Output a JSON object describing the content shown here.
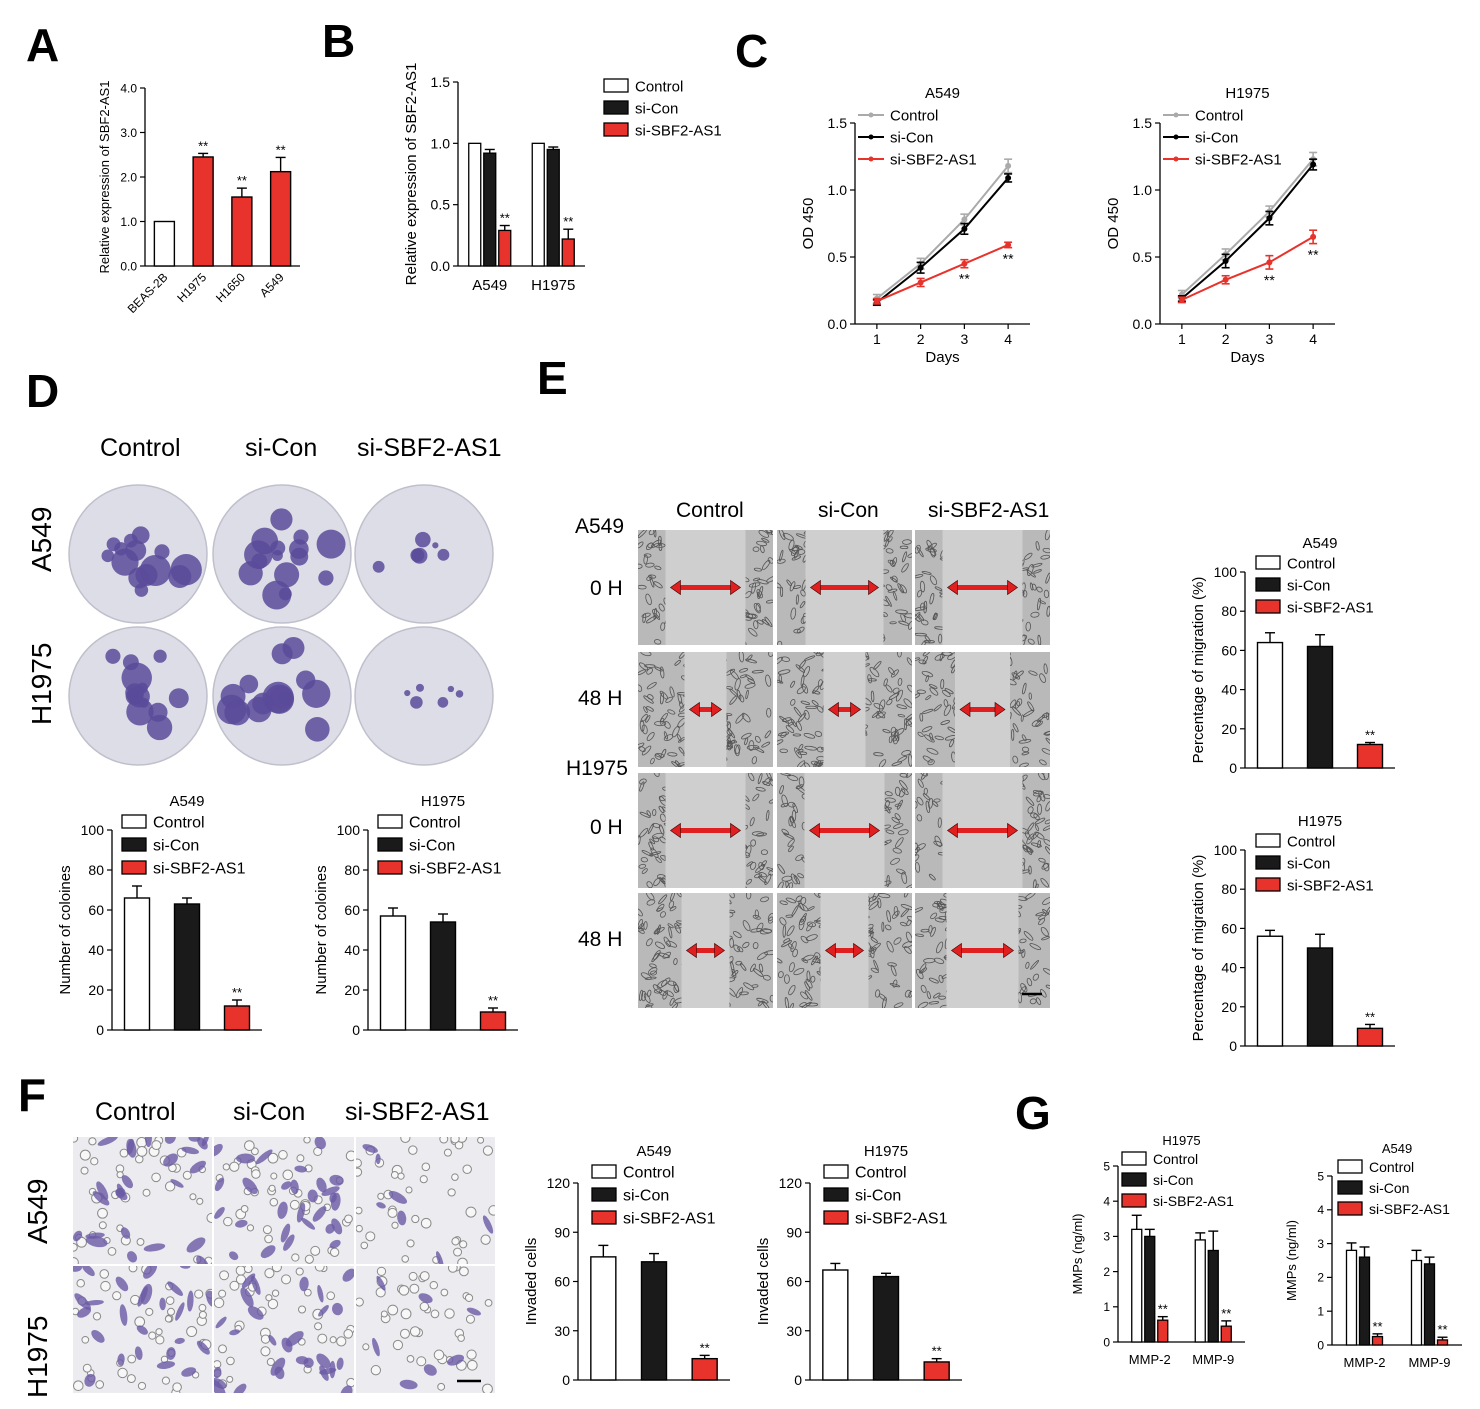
{
  "panel_labels": [
    "A",
    "B",
    "C",
    "D",
    "E",
    "F",
    "G"
  ],
  "colors": {
    "control": "#ffffff",
    "si_con": "#1a1a1a",
    "si_sbf2": "#e8322c",
    "line_control": "#aaaaaa",
    "axis": "#000000",
    "stain": "#5b4b9a",
    "arrow": "#e02020"
  },
  "sig": "**",
  "legend": [
    "Control",
    "si-Con",
    "si-SBF2-AS1"
  ],
  "photos": {
    "colony": {
      "cols": [
        "Control",
        "si-Con",
        "si-SBF2-AS1"
      ],
      "rows": [
        "A549",
        "H1975"
      ]
    },
    "wound": {
      "cols": [
        "Control",
        "si-Con",
        "si-SBF2-AS1"
      ],
      "groups": [
        "A549",
        "H1975"
      ],
      "times": [
        "0 H",
        "48 H",
        "0 H",
        "48 H"
      ]
    },
    "invasion": {
      "cols": [
        "Control",
        "si-Con",
        "si-SBF2-AS1"
      ],
      "rows": [
        "A549",
        "H1975"
      ]
    }
  },
  "chart_data": [
    {
      "id": "A",
      "type": "bar",
      "title": "",
      "ylabel": "Relative expression of SBF2-AS1",
      "xlabel": "",
      "categories": [
        "BEAS-2B",
        "H1975",
        "H1650",
        "A549"
      ],
      "values": [
        1.0,
        2.45,
        1.55,
        2.12
      ],
      "errors": [
        0,
        0.08,
        0.2,
        0.32
      ],
      "fills": [
        "control",
        "si_sbf2",
        "si_sbf2",
        "si_sbf2"
      ],
      "sig": [
        false,
        true,
        true,
        true
      ],
      "ylim": [
        0,
        4
      ],
      "yticks": [
        "0.0",
        "1.0",
        "2.0",
        "3.0",
        "4.0"
      ],
      "rotate_labels": true
    },
    {
      "id": "B",
      "type": "bar",
      "title": "",
      "ylabel": "Relative expression of SBF2-AS1",
      "xlabel": "",
      "categories": [
        "A549",
        "H1975"
      ],
      "series": [
        {
          "name": "Control",
          "values": [
            1.0,
            1.0
          ],
          "errors": [
            0,
            0
          ]
        },
        {
          "name": "si-Con",
          "values": [
            0.92,
            0.95
          ],
          "errors": [
            0.03,
            0.02
          ]
        },
        {
          "name": "si-SBF2-AS1",
          "values": [
            0.29,
            0.22
          ],
          "errors": [
            0.04,
            0.08
          ]
        }
      ],
      "sig": [
        false,
        false,
        true
      ],
      "ylim": [
        0,
        1.5
      ],
      "yticks": [
        "0.0",
        "0.5",
        "1.0",
        "1.5"
      ],
      "legend_position": "right"
    },
    {
      "id": "C1",
      "type": "line",
      "title": "A549",
      "ylabel": "OD 450",
      "xlabel": "Days",
      "x": [
        1,
        2,
        3,
        4
      ],
      "xticks": [
        "1",
        "2",
        "3",
        "4"
      ],
      "series": [
        {
          "name": "Control",
          "values": [
            0.19,
            0.45,
            0.78,
            1.18
          ],
          "errors": [
            0.03,
            0.04,
            0.04,
            0.05
          ]
        },
        {
          "name": "si-Con",
          "values": [
            0.16,
            0.42,
            0.71,
            1.09
          ],
          "errors": [
            0.02,
            0.04,
            0.04,
            0.03
          ]
        },
        {
          "name": "si-SBF2-AS1",
          "values": [
            0.17,
            0.31,
            0.45,
            0.59
          ],
          "errors": [
            0.02,
            0.03,
            0.03,
            0.02
          ]
        }
      ],
      "sig_points": [
        3,
        4
      ],
      "ylim": [
        0,
        1.5
      ],
      "yticks": [
        "0.0",
        "0.5",
        "1.0",
        "1.5"
      ],
      "legend_position": "top-left"
    },
    {
      "id": "C2",
      "type": "line",
      "title": "H1975",
      "ylabel": "OD 450",
      "xlabel": "Days",
      "x": [
        1,
        2,
        3,
        4
      ],
      "xticks": [
        "1",
        "2",
        "3",
        "4"
      ],
      "series": [
        {
          "name": "Control",
          "values": [
            0.22,
            0.52,
            0.84,
            1.23
          ],
          "errors": [
            0.03,
            0.04,
            0.04,
            0.05
          ]
        },
        {
          "name": "si-Con",
          "values": [
            0.19,
            0.47,
            0.79,
            1.19
          ],
          "errors": [
            0.02,
            0.05,
            0.05,
            0.04
          ]
        },
        {
          "name": "si-SBF2-AS1",
          "values": [
            0.18,
            0.33,
            0.46,
            0.65
          ],
          "errors": [
            0.02,
            0.03,
            0.05,
            0.05
          ]
        }
      ],
      "sig_points": [
        3,
        4
      ],
      "ylim": [
        0,
        1.5
      ],
      "yticks": [
        "0.0",
        "0.5",
        "1.0",
        "1.5"
      ],
      "legend_position": "top-left"
    },
    {
      "id": "D1",
      "type": "bar",
      "title": "A549",
      "ylabel": "Number of coloines",
      "xlabel": "",
      "categories": [
        "Control",
        "si-Con",
        "si-SBF2-AS1"
      ],
      "values": [
        66,
        63,
        12
      ],
      "errors": [
        6,
        3,
        3
      ],
      "sig": [
        false,
        false,
        true
      ],
      "ylim": [
        0,
        100
      ],
      "yticks": [
        "0",
        "20",
        "40",
        "60",
        "80",
        "100"
      ],
      "legend_position": "top-right"
    },
    {
      "id": "D2",
      "type": "bar",
      "title": "H1975",
      "ylabel": "Number of coloines",
      "xlabel": "",
      "categories": [
        "Control",
        "si-Con",
        "si-SBF2-AS1"
      ],
      "values": [
        57,
        54,
        9
      ],
      "errors": [
        4,
        4,
        2
      ],
      "sig": [
        false,
        false,
        true
      ],
      "ylim": [
        0,
        100
      ],
      "yticks": [
        "0",
        "20",
        "40",
        "60",
        "80",
        "100"
      ],
      "legend_position": "top-right"
    },
    {
      "id": "E1",
      "type": "bar",
      "title": "A549",
      "ylabel": "Percentage of migration (%)",
      "xlabel": "",
      "categories": [
        "Control",
        "si-Con",
        "si-SBF2-AS1"
      ],
      "values": [
        64,
        62,
        12
      ],
      "errors": [
        5,
        6,
        1
      ],
      "sig": [
        false,
        false,
        true
      ],
      "ylim": [
        0,
        100
      ],
      "yticks": [
        "0",
        "20",
        "40",
        "60",
        "80",
        "100"
      ],
      "legend_position": "top-right"
    },
    {
      "id": "E2",
      "type": "bar",
      "title": "H1975",
      "ylabel": "Percentage of migration (%)",
      "xlabel": "",
      "categories": [
        "Control",
        "si-Con",
        "si-SBF2-AS1"
      ],
      "values": [
        56,
        50,
        9
      ],
      "errors": [
        3,
        7,
        2
      ],
      "sig": [
        false,
        false,
        true
      ],
      "ylim": [
        0,
        100
      ],
      "yticks": [
        "0",
        "20",
        "40",
        "60",
        "80",
        "100"
      ],
      "legend_position": "top-right"
    },
    {
      "id": "F1",
      "type": "bar",
      "title": "A549",
      "ylabel": "Invaded cells",
      "xlabel": "",
      "categories": [
        "Control",
        "si-Con",
        "si-SBF2-AS1"
      ],
      "values": [
        75,
        72,
        13
      ],
      "errors": [
        7,
        5,
        2
      ],
      "sig": [
        false,
        false,
        true
      ],
      "ylim": [
        0,
        120
      ],
      "yticks": [
        "0",
        "30",
        "60",
        "90",
        "120"
      ],
      "legend_position": "top-right"
    },
    {
      "id": "F2",
      "type": "bar",
      "title": "H1975",
      "ylabel": "Invaded cells",
      "xlabel": "",
      "categories": [
        "Control",
        "si-Con",
        "si-SBF2-AS1"
      ],
      "values": [
        67,
        63,
        11
      ],
      "errors": [
        4,
        2,
        2
      ],
      "sig": [
        false,
        false,
        true
      ],
      "ylim": [
        0,
        120
      ],
      "yticks": [
        "0",
        "30",
        "60",
        "90",
        "120"
      ],
      "legend_position": "top-right"
    },
    {
      "id": "G1",
      "type": "bar",
      "title": "H1975",
      "ylabel": "MMPs (ng/ml)",
      "xlabel": "",
      "categories": [
        "MMP-2",
        "MMP-9"
      ],
      "series": [
        {
          "name": "Control",
          "values": [
            3.2,
            2.9
          ],
          "errors": [
            0.4,
            0.2
          ]
        },
        {
          "name": "si-Con",
          "values": [
            3.0,
            2.6
          ],
          "errors": [
            0.2,
            0.55
          ]
        },
        {
          "name": "si-SBF2-AS1",
          "values": [
            0.62,
            0.45
          ],
          "errors": [
            0.1,
            0.15
          ]
        }
      ],
      "sig": [
        false,
        false,
        true
      ],
      "ylim": [
        0,
        5
      ],
      "yticks": [
        "0",
        "1",
        "2",
        "3",
        "4",
        "5"
      ],
      "legend_position": "top-left"
    },
    {
      "id": "G2",
      "type": "bar",
      "title": "A549",
      "ylabel": "MMPs (ng/ml)",
      "xlabel": "",
      "categories": [
        "MMP-2",
        "MMP-9"
      ],
      "series": [
        {
          "name": "Control",
          "values": [
            2.8,
            2.5
          ],
          "errors": [
            0.22,
            0.3
          ]
        },
        {
          "name": "si-Con",
          "values": [
            2.6,
            2.4
          ],
          "errors": [
            0.3,
            0.2
          ]
        },
        {
          "name": "si-SBF2-AS1",
          "values": [
            0.25,
            0.15
          ],
          "errors": [
            0.08,
            0.08
          ]
        }
      ],
      "sig": [
        false,
        false,
        true
      ],
      "ylim": [
        0,
        5
      ],
      "yticks": [
        "0",
        "1",
        "2",
        "3",
        "4",
        "5"
      ],
      "legend_position": "top-left"
    }
  ]
}
